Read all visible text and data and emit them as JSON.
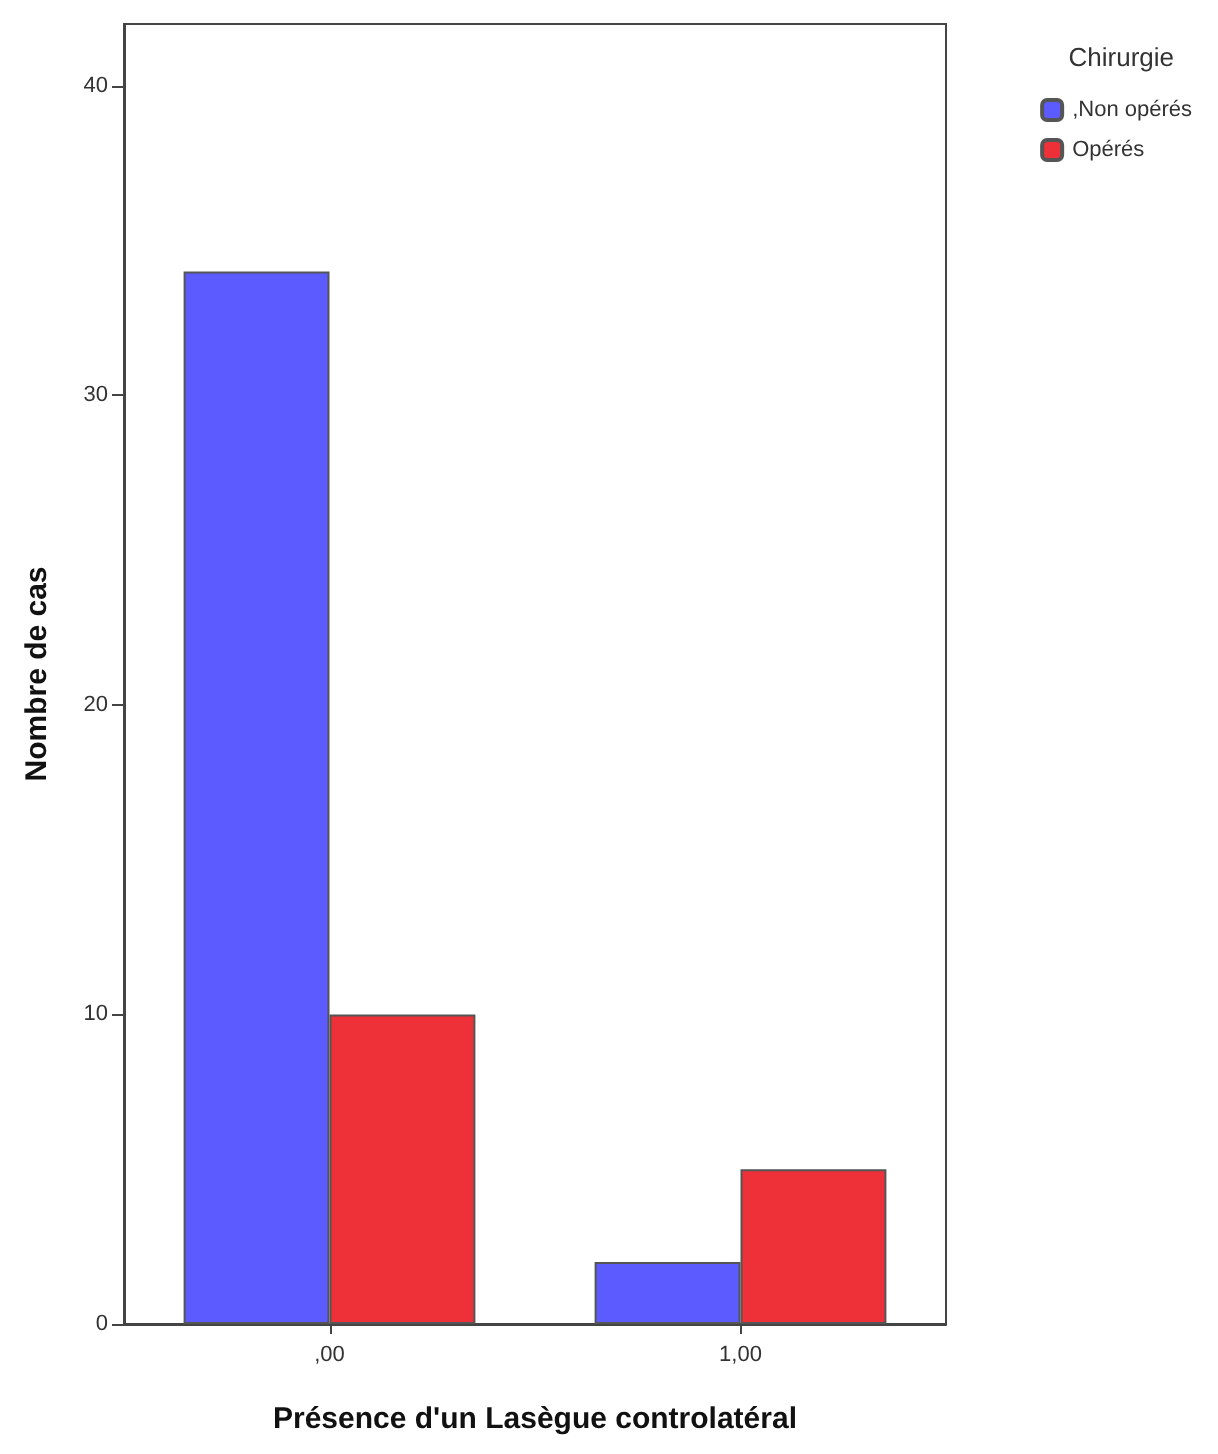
{
  "chart_data": {
    "type": "bar",
    "xlabel": "Présence d'un Lasègue controlatéral",
    "ylabel": "Nombre de cas",
    "legend_title": "Chirurgie",
    "categories": [
      ",00",
      "1,00"
    ],
    "series": [
      {
        "name": ",Non opérés",
        "color": "#5b5bff",
        "values": [
          34,
          2
        ]
      },
      {
        "name": "Opérés",
        "color": "#ee3038",
        "values": [
          10,
          5
        ]
      }
    ],
    "ylim": [
      0,
      42
    ],
    "yticks": [
      0,
      10,
      20,
      30,
      40
    ],
    "grid": false,
    "legend": "top right"
  }
}
